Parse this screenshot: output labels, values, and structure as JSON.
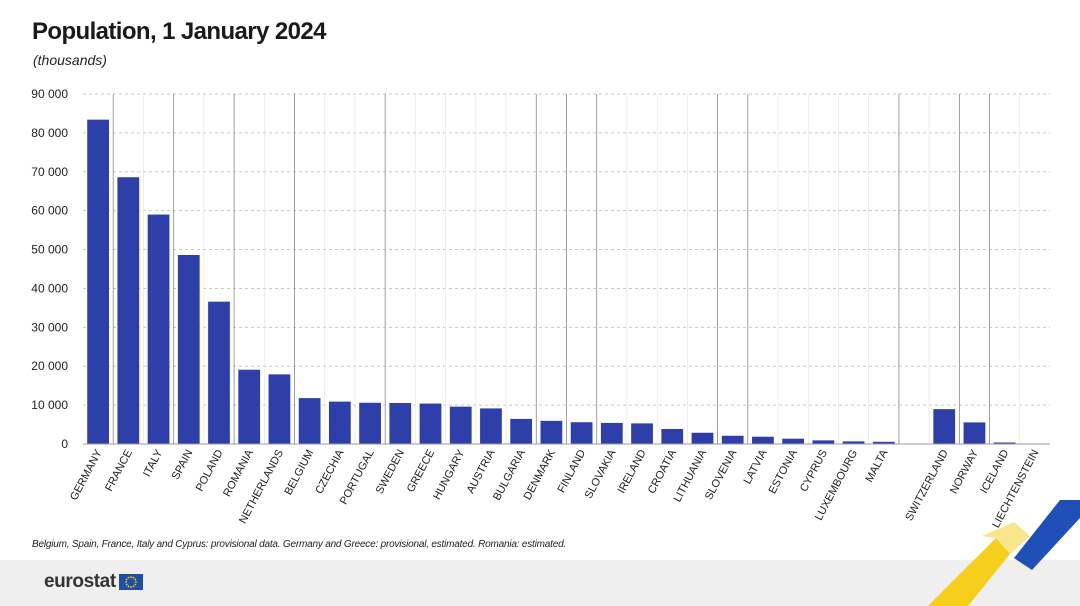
{
  "header": {
    "title": "Population, 1 January 2024",
    "subtitle": "(thousands)"
  },
  "footnote": "Belgium, Spain, France, Italy and Cyprus: provisional data. Germany and Greece: provisional, estimated. Romania: estimated.",
  "logo": {
    "text": "eurostat",
    "icon": "eu-flag-icon"
  },
  "colors": {
    "bar": "#2e3fa9",
    "grid": "#c8c8c8",
    "separator": "#8a8a8a",
    "axis": "#999999",
    "flag_blue": "#1f4fa3",
    "flag_star": "#ffd200",
    "corner_blue": "#1f4fb8",
    "corner_yellow": "#f5cf1b"
  },
  "chart_data": {
    "type": "bar",
    "title": "Population, 1 January 2024",
    "subtitle": "(thousands)",
    "xlabel": "",
    "ylabel": "",
    "ylim": [
      0,
      90000
    ],
    "yticks": [
      0,
      10000,
      20000,
      30000,
      40000,
      50000,
      60000,
      70000,
      80000,
      90000
    ],
    "ytick_labels": [
      "0",
      "10 000",
      "20 000",
      "30 000",
      "40 000",
      "50 000",
      "60 000",
      "70 000",
      "80 000",
      "90 000"
    ],
    "grid": true,
    "categories": [
      "GERMANY",
      "FRANCE",
      "ITALY",
      "SPAIN",
      "POLAND",
      "ROMANIA",
      "NETHERLANDS",
      "BELGIUM",
      "CZECHIA",
      "PORTUGAL",
      "SWEDEN",
      "GREECE",
      "HUNGARY",
      "AUSTRIA",
      "BULGARIA",
      "DENMARK",
      "FINLAND",
      "SLOVAKIA",
      "IRELAND",
      "CROATIA",
      "LITHUANIA",
      "SLOVENIA",
      "LATVIA",
      "ESTONIA",
      "CYPRUS",
      "LUXEMBOURG",
      "MALTA",
      "",
      "SWITZERLAND",
      "NORWAY",
      "ICELAND",
      "LIECHTENSTEIN"
    ],
    "values": [
      83400,
      68600,
      59000,
      48600,
      36600,
      19100,
      17900,
      11800,
      10900,
      10600,
      10550,
      10400,
      9600,
      9150,
      6450,
      5950,
      5600,
      5420,
      5300,
      3860,
      2890,
      2120,
      1870,
      1370,
      930,
      672,
      563,
      null,
      8960,
      5550,
      384,
      40
    ],
    "separators_after": [
      "GERMANY",
      "ITALY",
      "POLAND",
      "NETHERLANDS",
      "PORTUGAL",
      "BULGARIA",
      "DENMARK",
      "FINLAND",
      "LITHUANIA",
      "SLOVENIA",
      "MALTA",
      "SWITZERLAND",
      "NORWAY"
    ]
  }
}
